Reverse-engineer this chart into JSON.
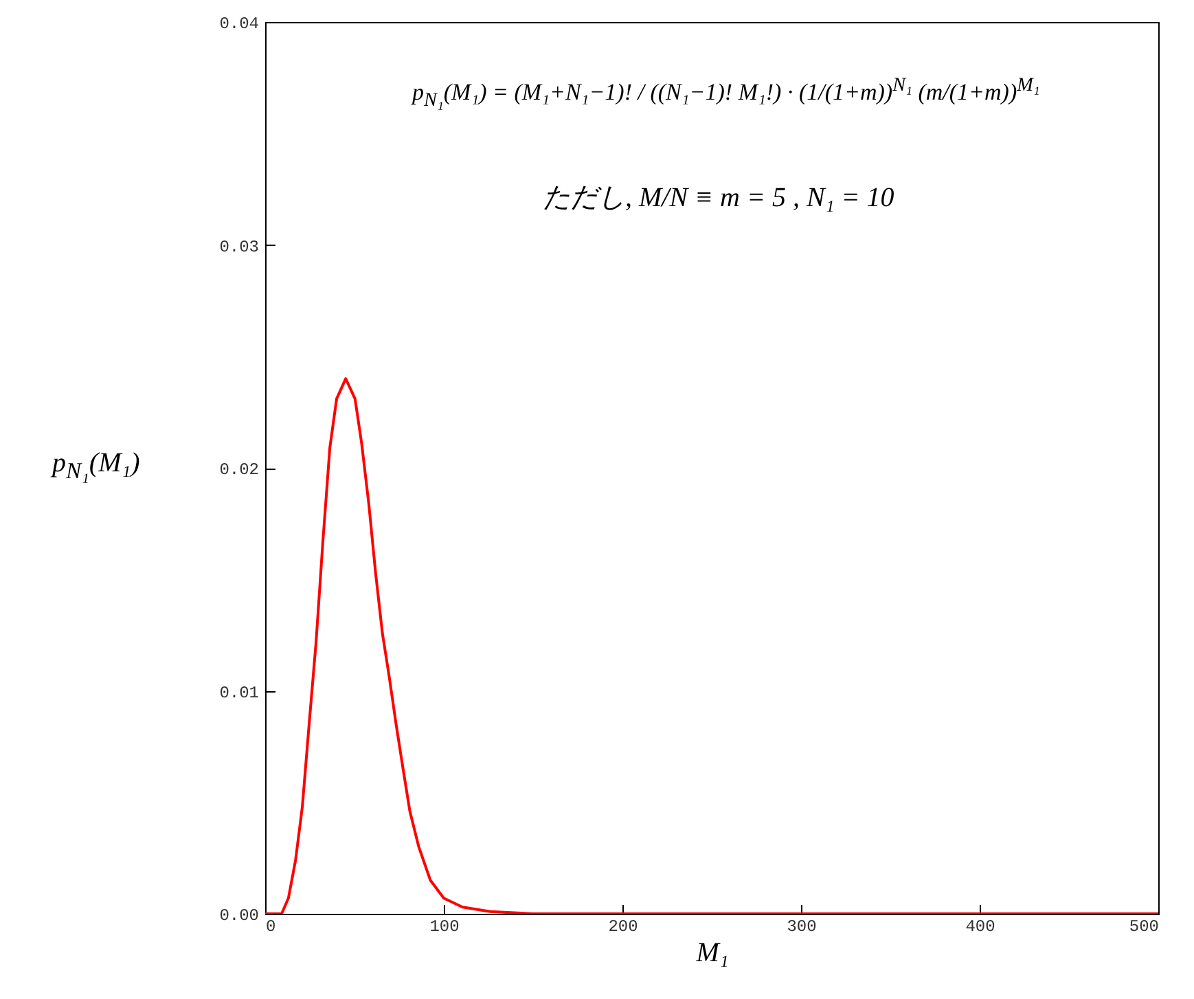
{
  "chart_data": {
    "type": "line",
    "xlabel": "M₁",
    "ylabel": "p$_{N₁}$(M₁)",
    "x": [
      0,
      5,
      9.2,
      13,
      17,
      20.8,
      24.6,
      28.5,
      32.3,
      36.2,
      40,
      45.1,
      50.3,
      54,
      58,
      61.8,
      65.6,
      69.5,
      73.3,
      77.2,
      81,
      86,
      92.5,
      100,
      110.5,
      126,
      150,
      200,
      300,
      400,
      500
    ],
    "series": [
      {
        "color": "#ff0000",
        "values": [
          0,
          0,
          0,
          0.0007,
          0.0024,
          0.0048,
          0.0085,
          0.0122,
          0.0167,
          0.0209,
          0.0231,
          0.024,
          0.0231,
          0.0211,
          0.0184,
          0.0153,
          0.0126,
          0.0106,
          0.0085,
          0.0065,
          0.0046,
          0.003,
          0.0015,
          0.0007,
          0.0003,
          0.0001,
          0,
          0,
          0,
          0,
          0
        ]
      }
    ],
    "xlim": [
      0,
      500
    ],
    "xticks": [
      0,
      100,
      200,
      300,
      400,
      500
    ],
    "ylim": [
      0,
      0.04
    ],
    "yticks": [
      {
        "value": 0,
        "label": "0.00"
      },
      {
        "value": 0.01,
        "label": "0.01"
      },
      {
        "value": 0.02,
        "label": "0.02"
      },
      {
        "value": 0.03,
        "label": "0.03"
      },
      {
        "value": 0.04,
        "label": "0.04"
      }
    ],
    "annotations": [
      "p$_{N₁}$(M₁) = (M₁+N₁−1)! / ((N₁−1)! M₁!) · (1/(1+m))$^{N₁}$ (m/(1+m))$^{M₁}$",
      "ただし, M/N ≡ m = 5 , N₁ = 10"
    ],
    "grid": false,
    "marker": "none",
    "line_style": "solid"
  }
}
